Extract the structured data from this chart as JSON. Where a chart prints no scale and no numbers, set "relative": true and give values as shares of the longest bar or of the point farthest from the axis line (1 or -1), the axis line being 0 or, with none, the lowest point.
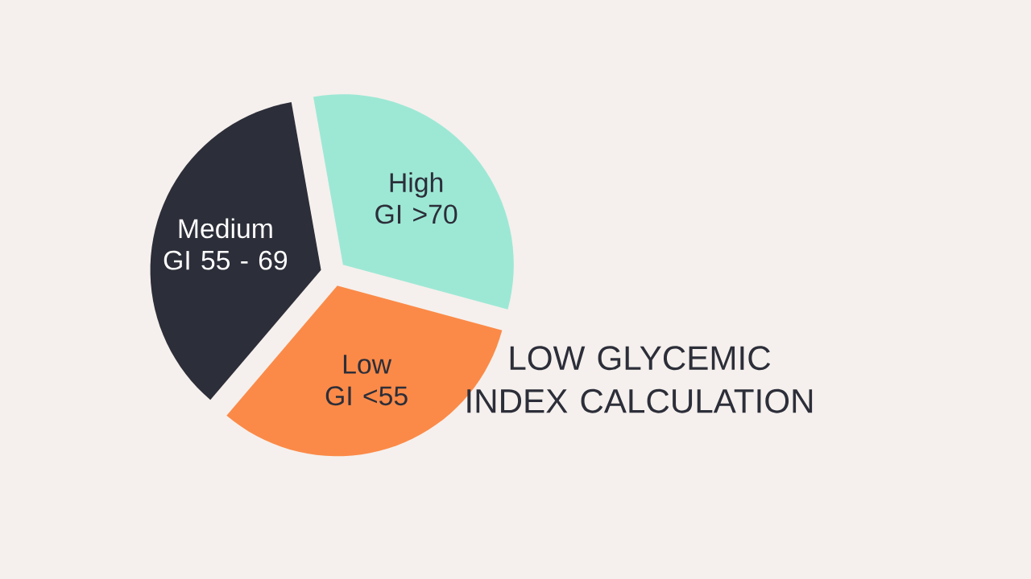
{
  "chart_data": {
    "type": "pie",
    "title": "LOW GLYCEMIC INDEX CALCULATION",
    "relative": true,
    "categories": [
      "High GI >70",
      "Low GI <55",
      "Medium GI 55 - 69"
    ],
    "values": [
      32,
      32,
      36
    ],
    "colors": [
      "#9de8d5",
      "#fb8a48",
      "#2c2e39"
    ]
  }
}
